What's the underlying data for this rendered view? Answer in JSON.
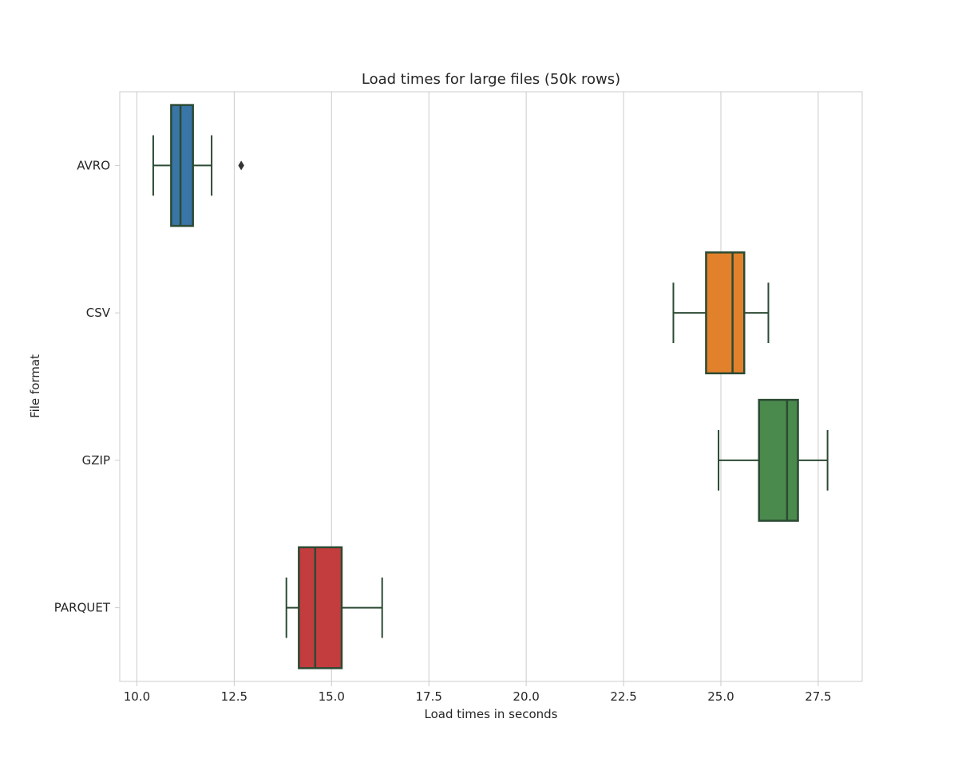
{
  "chart_data": {
    "type": "boxplot",
    "orientation": "horizontal",
    "title": "Load times for large files (50k rows)",
    "xlabel": "Load times in seconds",
    "ylabel": "File format",
    "xlim": [
      9.56,
      28.63
    ],
    "x_ticks": [
      10.0,
      12.5,
      15.0,
      17.5,
      20.0,
      22.5,
      25.0,
      27.5
    ],
    "x_tick_labels": [
      "10.0",
      "12.5",
      "15.0",
      "17.5",
      "20.0",
      "22.5",
      "25.0",
      "27.5"
    ],
    "grid": "vertical",
    "categories": [
      "AVRO",
      "CSV",
      "GZIP",
      "PARQUET"
    ],
    "series": [
      {
        "category": "AVRO",
        "color": "#3a75a8",
        "whisker_low": 10.42,
        "q1": 10.88,
        "median": 11.12,
        "q3": 11.44,
        "whisker_high": 11.92,
        "outliers": [
          12.68
        ]
      },
      {
        "category": "CSV",
        "color": "#e1812c",
        "whisker_low": 23.78,
        "q1": 24.62,
        "median": 25.3,
        "q3": 25.6,
        "whisker_high": 26.22,
        "outliers": []
      },
      {
        "category": "GZIP",
        "color": "#4a8a4c",
        "whisker_low": 24.94,
        "q1": 25.98,
        "median": 26.7,
        "q3": 26.98,
        "whisker_high": 27.74,
        "outliers": []
      },
      {
        "category": "PARQUET",
        "color": "#c33c3e",
        "whisker_low": 13.84,
        "q1": 14.16,
        "median": 14.58,
        "q3": 15.26,
        "whisker_high": 16.3,
        "outliers": []
      }
    ],
    "line_color": "#2b4a33"
  }
}
